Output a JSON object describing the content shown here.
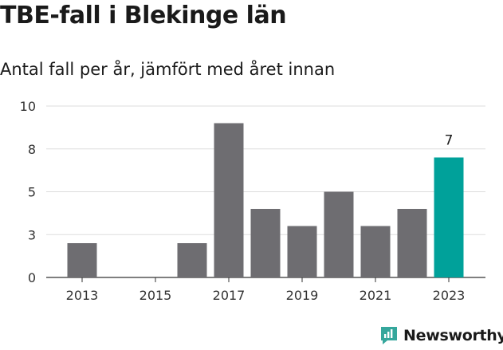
{
  "title": "TBE-fall i Blekinge län",
  "subtitle": "Antal fall per år, jämfört med året innan",
  "brand": {
    "name": "Newsworthy",
    "color": "#35a79c",
    "icon": "newsworthy-chart-icon"
  },
  "colors": {
    "bar": "#6e6d71",
    "highlight": "#00a19a",
    "grid": "#dddddd",
    "axis": "#333333"
  },
  "chart_data": {
    "type": "bar",
    "x": [
      2013,
      2014,
      2015,
      2016,
      2017,
      2018,
      2019,
      2020,
      2021,
      2022,
      2023
    ],
    "values": [
      2,
      0,
      0,
      2,
      9,
      4,
      3,
      5,
      3,
      4,
      7
    ],
    "highlight_index": 10,
    "data_labels": {
      "10": "7"
    },
    "x_tick_labels": [
      "2013",
      "2015",
      "2017",
      "2019",
      "2021",
      "2023"
    ],
    "y_ticks": [
      0,
      3,
      5,
      8,
      10
    ],
    "y_tick_positions": [
      0,
      2.5,
      5,
      7.5,
      10
    ],
    "ylim": [
      0,
      10
    ],
    "xlabel": "",
    "ylabel": "",
    "grid": true
  }
}
